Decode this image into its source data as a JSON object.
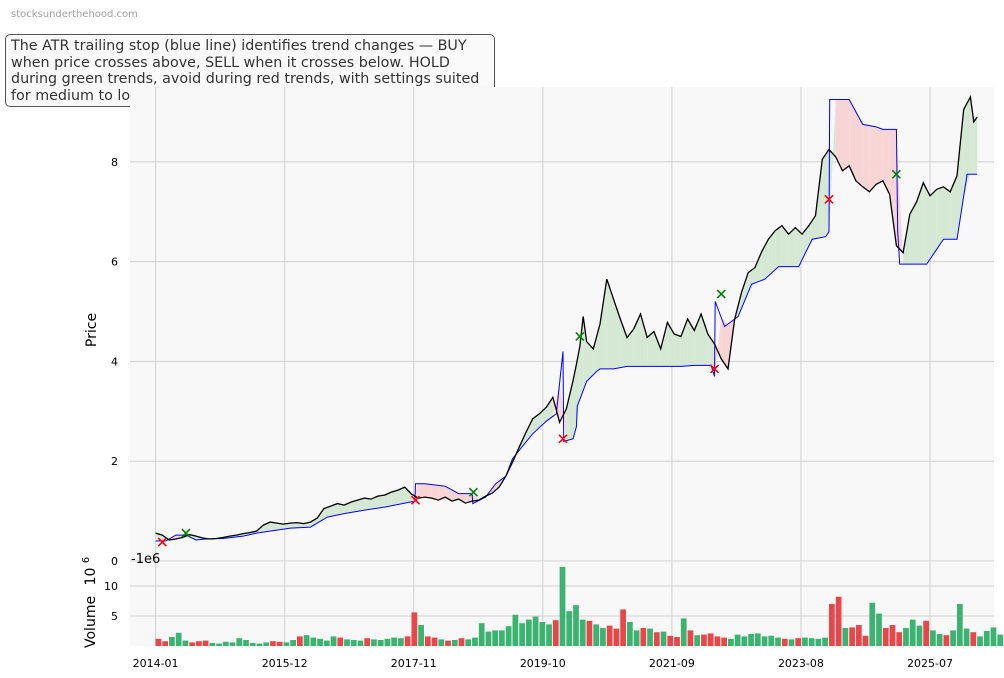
{
  "watermark": "stocksunderthehood.com",
  "annotation": "The ATR trailing stop (blue line) identifies trend changes — BUY when price crosses above, SELL when it crosses below. HOLD during green trends, avoid during red trends, with settings suited for medium to long-term investors.",
  "colors": {
    "price_line": "#000000",
    "stop_line": "#0000ff",
    "uptrend_fill": "#d5e8d4",
    "downtrend_fill": "#f8d5d5",
    "buy_marker": "#008000",
    "sell_marker": "#ff0000",
    "volume_up": "#3cb371",
    "volume_down": "#e8474a",
    "plot_background": "#f8f8f8",
    "grid": "#d0d0d0"
  },
  "chart_data": [
    {
      "type": "line",
      "panel": "price",
      "ylabel": "Price",
      "ylim": [
        0,
        9.5
      ],
      "yticks": [
        "0",
        "2",
        "4",
        "6",
        "8"
      ],
      "xlim": [
        2013.62,
        2026.45
      ],
      "xticks": [
        "2014-01",
        "2015-12",
        "2017-11",
        "2019-10",
        "2021-09",
        "2023-08",
        "2025-07"
      ],
      "grid": true,
      "series": [
        {
          "key": "price",
          "x": [
            2014.0,
            2014.1,
            2014.2,
            2014.3,
            2014.4,
            2014.5,
            2014.6,
            2014.7,
            2014.8,
            2014.9,
            2015.0,
            2015.1,
            2015.2,
            2015.3,
            2015.4,
            2015.5,
            2015.6,
            2015.7,
            2015.8,
            2015.9,
            2016.0,
            2016.1,
            2016.2,
            2016.3,
            2016.4,
            2016.5,
            2016.6,
            2016.7,
            2016.8,
            2016.9,
            2017.0,
            2017.1,
            2017.2,
            2017.3,
            2017.4,
            2017.5,
            2017.6,
            2017.7,
            2017.8,
            2017.9,
            2018.0,
            2018.1,
            2018.2,
            2018.3,
            2018.4,
            2018.5,
            2018.6,
            2018.7,
            2018.8,
            2018.9,
            2019.0,
            2019.1,
            2019.2,
            2019.3,
            2019.4,
            2019.5,
            2019.6,
            2019.7,
            2019.8,
            2019.9,
            2020.0,
            2020.1,
            2020.2,
            2020.25,
            2020.3,
            2020.35,
            2020.4,
            2020.5,
            2020.6,
            2020.7,
            2020.8,
            2020.9,
            2021.0,
            2021.1,
            2021.2,
            2021.3,
            2021.4,
            2021.5,
            2021.6,
            2021.7,
            2021.8,
            2021.9,
            2022.0,
            2022.1,
            2022.2,
            2022.3,
            2022.4,
            2022.5,
            2022.6,
            2022.7,
            2022.8,
            2022.9,
            2023.0,
            2023.1,
            2023.2,
            2023.3,
            2023.4,
            2023.5,
            2023.6,
            2023.7,
            2023.8,
            2023.9,
            2024.0,
            2024.1,
            2024.2,
            2024.3,
            2024.4,
            2024.5,
            2024.6,
            2024.7,
            2024.8,
            2024.9,
            2025.0,
            2025.1,
            2025.2,
            2025.3,
            2025.4,
            2025.5,
            2025.6,
            2025.7,
            2025.8,
            2025.9,
            2026.0,
            2026.1,
            2026.15,
            2026.2
          ],
          "values": [
            0.56,
            0.52,
            0.42,
            0.44,
            0.47,
            0.53,
            0.5,
            0.46,
            0.44,
            0.45,
            0.47,
            0.5,
            0.52,
            0.55,
            0.57,
            0.6,
            0.72,
            0.78,
            0.76,
            0.74,
            0.76,
            0.77,
            0.75,
            0.78,
            0.86,
            1.05,
            1.1,
            1.15,
            1.12,
            1.18,
            1.22,
            1.26,
            1.24,
            1.3,
            1.32,
            1.38,
            1.42,
            1.48,
            1.34,
            1.26,
            1.28,
            1.26,
            1.22,
            1.28,
            1.2,
            1.24,
            1.16,
            1.2,
            1.22,
            1.3,
            1.36,
            1.48,
            1.7,
            1.98,
            2.28,
            2.58,
            2.85,
            2.95,
            3.08,
            3.28,
            2.78,
            3.05,
            3.62,
            3.95,
            4.3,
            4.9,
            4.4,
            4.25,
            4.75,
            5.65,
            5.25,
            4.85,
            4.48,
            4.65,
            4.95,
            4.48,
            4.6,
            4.25,
            4.78,
            4.55,
            4.5,
            4.85,
            4.62,
            4.95,
            4.55,
            4.35,
            4.05,
            3.85,
            4.85,
            5.38,
            5.78,
            5.88,
            6.2,
            6.45,
            6.62,
            6.72,
            6.55,
            6.68,
            6.55,
            6.72,
            6.92,
            8.05,
            8.25,
            8.1,
            7.82,
            7.92,
            7.62,
            7.5,
            7.4,
            7.55,
            7.62,
            7.35,
            6.32,
            6.18,
            6.95,
            7.2,
            7.58,
            7.32,
            7.45,
            7.5,
            7.4,
            7.72,
            9.05,
            9.3,
            8.8,
            8.9
          ]
        },
        {
          "key": "atr_stop",
          "x": [
            2014.0,
            2014.15,
            2014.3,
            2014.45,
            2014.6,
            2014.75,
            2015.0,
            2015.3,
            2015.5,
            2015.6,
            2015.8,
            2016.0,
            2016.3,
            2016.55,
            2016.8,
            2017.1,
            2017.4,
            2017.7,
            2017.85,
            2017.86,
            2018.0,
            2018.3,
            2018.5,
            2018.7,
            2018.71,
            2018.9,
            2019.05,
            2019.2,
            2019.3,
            2019.45,
            2019.6,
            2019.8,
            2019.95,
            2020.05,
            2020.06,
            2020.2,
            2020.25,
            2020.26,
            2020.4,
            2020.55,
            2020.6,
            2020.8,
            2021.0,
            2021.5,
            2021.8,
            2022.0,
            2022.2,
            2022.25,
            2022.3,
            2022.31,
            2022.45,
            2022.65,
            2022.85,
            2023.05,
            2023.25,
            2023.55,
            2023.75,
            2023.95,
            2024.0,
            2024.01,
            2024.3,
            2024.5,
            2024.7,
            2024.8,
            2025.0,
            2025.02,
            2025.05,
            2025.2,
            2025.3,
            2025.45,
            2025.7,
            2025.9,
            2026.05,
            2026.2
          ],
          "values": [
            0.4,
            0.4,
            0.52,
            0.52,
            0.42,
            0.44,
            0.45,
            0.5,
            0.56,
            0.58,
            0.62,
            0.66,
            0.68,
            0.88,
            0.95,
            1.02,
            1.08,
            1.16,
            1.2,
            1.55,
            1.55,
            1.5,
            1.35,
            1.35,
            1.15,
            1.28,
            1.55,
            1.7,
            2.05,
            2.3,
            2.55,
            2.8,
            2.95,
            4.2,
            2.4,
            2.45,
            2.7,
            3.1,
            3.6,
            3.8,
            3.85,
            3.85,
            3.9,
            3.9,
            3.9,
            3.92,
            3.92,
            3.92,
            3.7,
            5.2,
            4.7,
            4.9,
            5.55,
            5.65,
            5.9,
            5.9,
            6.45,
            6.5,
            6.6,
            9.25,
            9.25,
            8.75,
            8.7,
            8.65,
            8.65,
            6.6,
            5.95,
            5.95,
            5.95,
            5.95,
            6.45,
            6.45,
            7.75,
            7.75
          ]
        }
      ],
      "markers": {
        "buy": [
          {
            "x": 2014.45,
            "y": 0.56
          },
          {
            "x": 2018.72,
            "y": 1.38
          },
          {
            "x": 2020.3,
            "y": 4.5
          },
          {
            "x": 2022.4,
            "y": 5.35
          },
          {
            "x": 2025.0,
            "y": 7.75
          }
        ],
        "sell": [
          {
            "x": 2014.1,
            "y": 0.38
          },
          {
            "x": 2017.86,
            "y": 1.22
          },
          {
            "x": 2020.05,
            "y": 2.45
          },
          {
            "x": 2022.3,
            "y": 3.85
          },
          {
            "x": 2024.0,
            "y": 7.25
          }
        ]
      }
    },
    {
      "type": "bar",
      "panel": "volume",
      "ylabel": "Volume",
      "ylabel_exponent": "10^6",
      "offset_label": "-1e6",
      "ylim": [
        0,
        14
      ],
      "yticks": [
        "5",
        "10"
      ],
      "x_start": 2014.0,
      "x_step": 0.1,
      "values": [
        1.2,
        0.8,
        1.5,
        2.2,
        0.9,
        0.6,
        0.8,
        0.9,
        0.5,
        0.4,
        0.7,
        0.6,
        1.3,
        1.0,
        0.5,
        0.4,
        0.6,
        0.8,
        0.7,
        0.6,
        1.0,
        1.6,
        1.8,
        1.4,
        1.2,
        0.9,
        1.6,
        1.4,
        1.1,
        1.0,
        0.9,
        1.3,
        1.1,
        1.0,
        1.2,
        1.4,
        1.3,
        1.6,
        5.6,
        3.5,
        1.6,
        1.4,
        1.1,
        0.9,
        1.0,
        1.3,
        1.1,
        1.4,
        3.8,
        2.4,
        2.6,
        2.6,
        3.3,
        5.2,
        3.8,
        4.4,
        4.9,
        4.0,
        3.6,
        4.3,
        13.2,
        5.8,
        6.8,
        4.4,
        4.2,
        3.6,
        3.0,
        3.4,
        2.9,
        6.1,
        4.0,
        2.6,
        3.0,
        2.9,
        2.3,
        2.4,
        1.7,
        1.5,
        4.6,
        2.6,
        1.8,
        1.9,
        2.1,
        1.6,
        1.4,
        1.2,
        1.9,
        1.6,
        2.0,
        2.1,
        1.6,
        1.7,
        1.4,
        1.2,
        1.1,
        1.3,
        1.4,
        1.3,
        1.2,
        1.4,
        7.0,
        8.2,
        3.0,
        3.1,
        3.5,
        1.7,
        7.2,
        5.4,
        3.0,
        3.5,
        2.3,
        3.0,
        4.4,
        3.4,
        4.2,
        2.6,
        2.0,
        1.8,
        2.6,
        7.0,
        2.9,
        2.3,
        1.6,
        2.5,
        3.1,
        1.9
      ]
    }
  ]
}
